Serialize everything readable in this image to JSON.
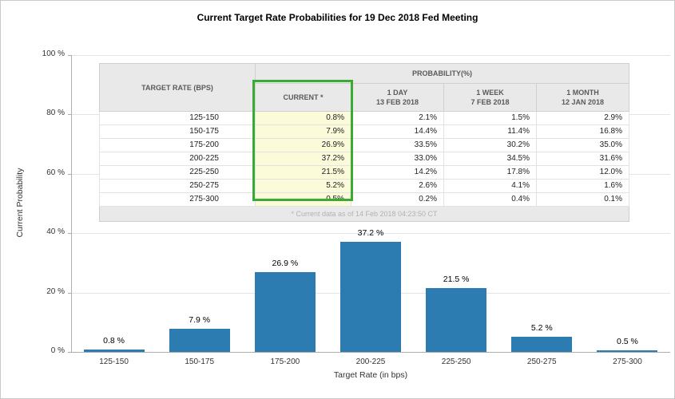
{
  "title": "Current Target Rate Probabilities for 19 Dec 2018 Fed Meeting",
  "chart_data": {
    "type": "bar",
    "title": "Current Target Rate Probabilities for 19 Dec 2018 Fed Meeting",
    "categories": [
      "125-150",
      "150-175",
      "175-200",
      "200-225",
      "225-250",
      "250-275",
      "275-300"
    ],
    "values": [
      0.8,
      7.9,
      26.9,
      37.2,
      21.5,
      5.2,
      0.5
    ],
    "bar_labels": [
      "0.8 %",
      "7.9 %",
      "26.9 %",
      "37.2 %",
      "21.5 %",
      "5.2 %",
      "0.5 %"
    ],
    "xlabel": "Target Rate (in bps)",
    "ylabel": "Current Probability",
    "ylim": [
      0,
      100
    ],
    "yticks": [
      {
        "v": 0,
        "label": "0 %"
      },
      {
        "v": 20,
        "label": "20 %"
      },
      {
        "v": 40,
        "label": "40 %"
      },
      {
        "v": 60,
        "label": "60 %"
      },
      {
        "v": 80,
        "label": "80 %"
      },
      {
        "v": 100,
        "label": "100 %"
      }
    ],
    "grid": true,
    "legend": false,
    "series": [
      {
        "name": "CURRENT *",
        "values": [
          0.8,
          7.9,
          26.9,
          37.2,
          21.5,
          5.2,
          0.5
        ]
      },
      {
        "name": "1 DAY 13 FEB 2018",
        "values": [
          2.1,
          14.4,
          33.5,
          33.0,
          14.2,
          2.6,
          0.2
        ]
      },
      {
        "name": "1 WEEK 7 FEB 2018",
        "values": [
          1.5,
          11.4,
          30.2,
          34.5,
          17.8,
          4.1,
          0.4
        ]
      },
      {
        "name": "1 MONTH 12 JAN 2018",
        "values": [
          2.9,
          16.8,
          35.0,
          31.6,
          12.0,
          1.6,
          0.1
        ]
      }
    ]
  },
  "table": {
    "target_header": "TARGET RATE (BPS)",
    "probability_header": "PROBABILITY(%)",
    "columns": [
      {
        "label": "CURRENT *",
        "sub": ""
      },
      {
        "label": "1 DAY",
        "sub": "13 FEB 2018"
      },
      {
        "label": "1 WEEK",
        "sub": "7 FEB 2018"
      },
      {
        "label": "1 MONTH",
        "sub": "12 JAN 2018"
      }
    ],
    "rows": [
      {
        "rate": "125-150",
        "values": [
          "0.8%",
          "2.1%",
          "1.5%",
          "2.9%"
        ]
      },
      {
        "rate": "150-175",
        "values": [
          "7.9%",
          "14.4%",
          "11.4%",
          "16.8%"
        ]
      },
      {
        "rate": "175-200",
        "values": [
          "26.9%",
          "33.5%",
          "30.2%",
          "35.0%"
        ]
      },
      {
        "rate": "200-225",
        "values": [
          "37.2%",
          "33.0%",
          "34.5%",
          "31.6%"
        ]
      },
      {
        "rate": "225-250",
        "values": [
          "21.5%",
          "14.2%",
          "17.8%",
          "12.0%"
        ]
      },
      {
        "rate": "250-275",
        "values": [
          "5.2%",
          "2.6%",
          "4.1%",
          "1.6%"
        ]
      },
      {
        "rate": "275-300",
        "values": [
          "0.5%",
          "0.2%",
          "0.4%",
          "0.1%"
        ]
      }
    ],
    "footnote": "* Current data as of 14 Feb 2018 04:23:50 CT"
  },
  "colors": {
    "bar": "#2d7cb1",
    "highlight_border": "#3aaa35",
    "highlight_bg": "#fbfbda"
  }
}
